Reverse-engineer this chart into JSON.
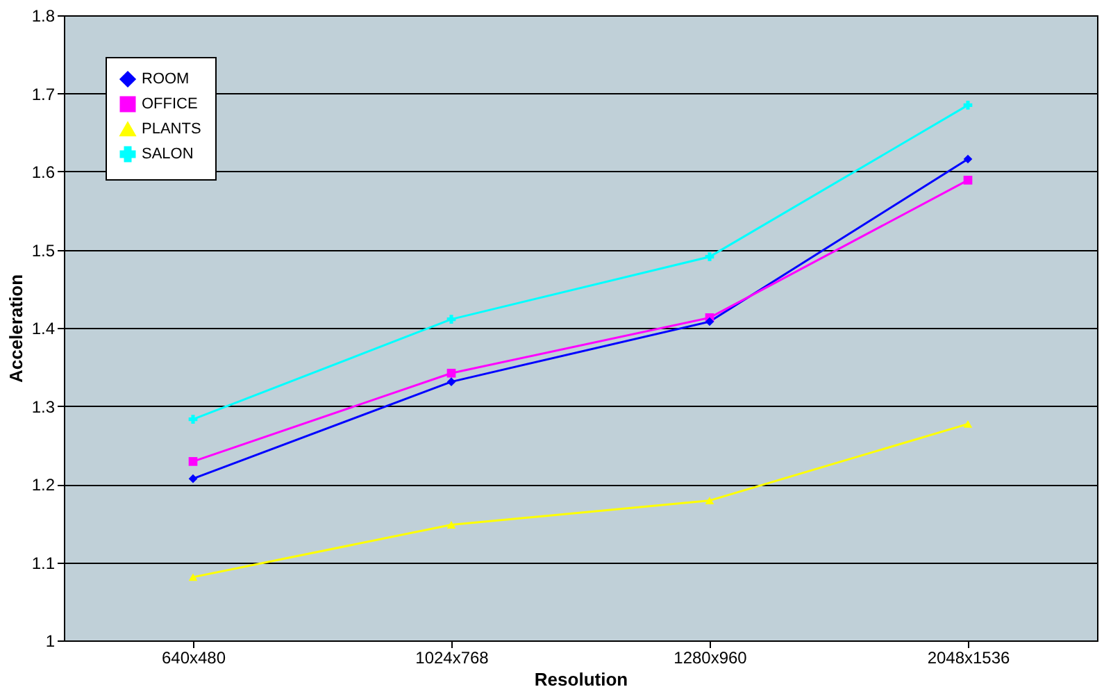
{
  "chart_data": {
    "type": "line",
    "xlabel": "Resolution",
    "ylabel": "Acceleration",
    "categories": [
      "640x480",
      "1024x768",
      "1280x960",
      "2048x1536"
    ],
    "ylim": [
      1,
      1.8
    ],
    "yticks": [
      1,
      1.1,
      1.2,
      1.3,
      1.4,
      1.5,
      1.6,
      1.7,
      1.8
    ],
    "grid": "y",
    "legend": "top left",
    "line_style": "solid",
    "series": [
      {
        "name": "ROOM",
        "color": "#0000ff",
        "marker": "diamond",
        "values": [
          1.207,
          1.331,
          1.408,
          1.616
        ]
      },
      {
        "name": "OFFICE",
        "color": "#ff00ff",
        "marker": "square",
        "values": [
          1.229,
          1.342,
          1.413,
          1.589
        ]
      },
      {
        "name": "PLANTS",
        "color": "#ffff00",
        "marker": "triangle",
        "values": [
          1.081,
          1.148,
          1.179,
          1.277
        ]
      },
      {
        "name": "SALON",
        "color": "#00ffff",
        "marker": "cross",
        "values": [
          1.283,
          1.411,
          1.491,
          1.685
        ]
      }
    ]
  }
}
